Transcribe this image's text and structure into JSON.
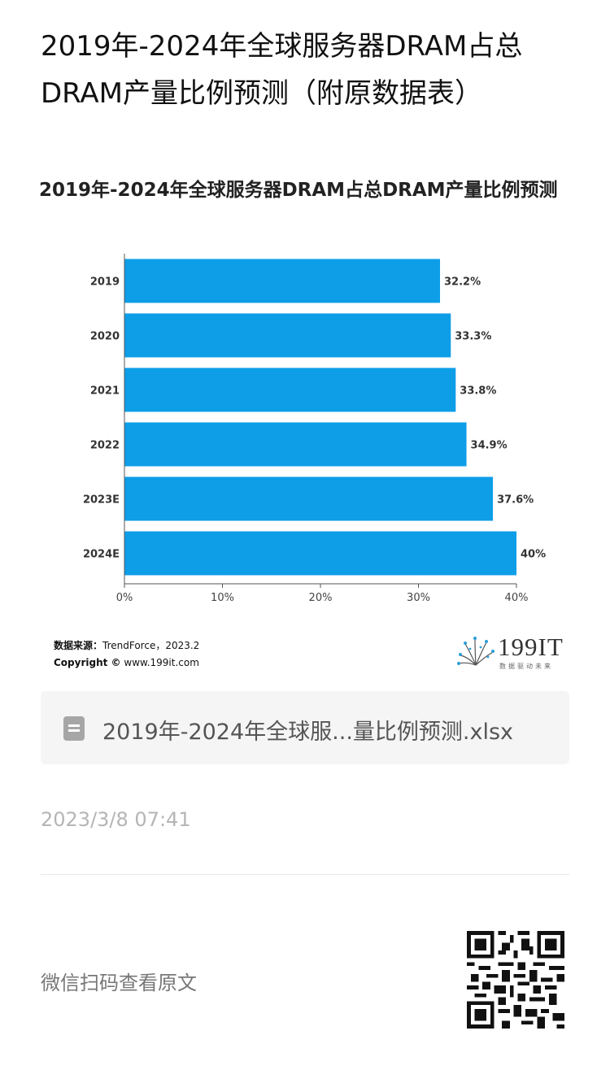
{
  "article": {
    "title": "2019年-2024年全球服务器DRAM占总DRAM产量比例预测（附原数据表）"
  },
  "chart_data": {
    "type": "bar",
    "orientation": "horizontal",
    "title": "2019年-2024年全球服务器DRAM占总DRAM产量比例预测",
    "categories": [
      "2019",
      "2020",
      "2021",
      "2022",
      "2023E",
      "2024E"
    ],
    "values": [
      32.2,
      33.3,
      33.8,
      34.9,
      37.6,
      40
    ],
    "value_labels": [
      "32.2%",
      "33.3%",
      "33.8%",
      "34.9%",
      "37.6%",
      "40%"
    ],
    "xlim": [
      0,
      40
    ],
    "x_ticks": [
      "0%",
      "10%",
      "20%",
      "30%",
      "40%"
    ],
    "bar_color": "#0e9ee8",
    "grid": false
  },
  "chart_footer": {
    "source_label": "数据来源：",
    "source_value": "TrendForce，2023.2",
    "copyright_label": "Copyright ©",
    "copyright_value": "www.199it.com",
    "logo_text": "199IT",
    "logo_sub": "数据驱动未来"
  },
  "attachment": {
    "file_name": "2019年-2024年全球服...量比例预测.xlsx",
    "icon": "spreadsheet-file-icon"
  },
  "timestamp": "2023/3/8 07:41",
  "qr": {
    "hint": "微信扫码查看原文",
    "icon": "qr-code-icon"
  }
}
